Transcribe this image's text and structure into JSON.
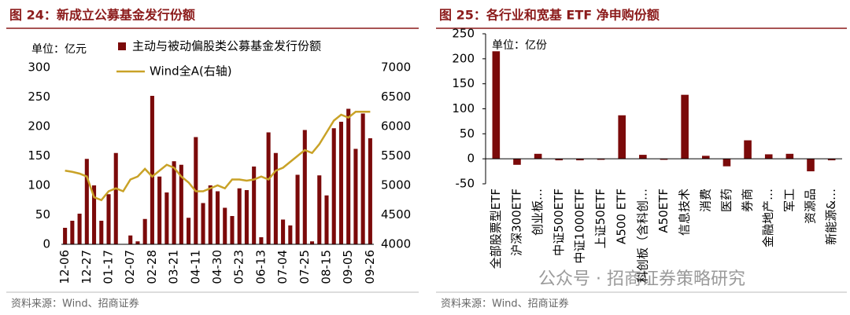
{
  "chart_data": [
    {
      "type": "bar",
      "title": "图 24：新成立公募基金发行份额",
      "unit": "单位：亿元",
      "source": "资料来源：Wind、招商证券",
      "categories": [
        "12-06",
        null,
        null,
        "12-27",
        null,
        null,
        "01-17",
        null,
        null,
        "02-07",
        null,
        null,
        "02-28",
        null,
        null,
        "03-21",
        null,
        null,
        "04-11",
        null,
        null,
        "04-30",
        null,
        null,
        "05-23",
        null,
        null,
        "06-13",
        null,
        null,
        "07-04",
        null,
        null,
        "07-25",
        null,
        null,
        "08-15",
        null,
        null,
        "09-05",
        null,
        null,
        "09-26"
      ],
      "series": [
        {
          "name": "主动与被动偏股类公募基金发行份额",
          "type": "bar",
          "color": "#7b0a0a",
          "values": [
            28,
            40,
            52,
            145,
            100,
            40,
            85,
            155,
            0,
            15,
            5,
            43,
            252,
            115,
            88,
            141,
            135,
            45,
            182,
            70,
            100,
            90,
            62,
            48,
            95,
            92,
            132,
            12,
            190,
            155,
            42,
            32,
            118,
            194,
            5,
            117,
            83,
            197,
            208,
            230,
            162,
            222,
            180
          ]
        },
        {
          "name": "Wind全A(右轴)",
          "type": "line",
          "axis": "y2",
          "color": "#c9a227",
          "values": [
            5250,
            5230,
            5200,
            5150,
            4800,
            4750,
            4900,
            4950,
            4900,
            5100,
            5150,
            5280,
            5150,
            5250,
            5350,
            5300,
            5150,
            5050,
            4900,
            4900,
            4950,
            5000,
            4950,
            5100,
            5100,
            5080,
            5100,
            5150,
            5100,
            5250,
            5300,
            5400,
            5500,
            5600,
            5550,
            5700,
            5900,
            6100,
            6200,
            6150,
            6250,
            6250,
            6250
          ]
        }
      ],
      "ylim": [
        0,
        300
      ],
      "yticks": [
        0,
        50,
        100,
        150,
        200,
        250,
        300
      ],
      "y2lim": [
        4000,
        7000
      ],
      "y2ticks": [
        4000,
        4500,
        5000,
        5500,
        6000,
        6500,
        7000
      ]
    },
    {
      "type": "bar",
      "title": "图 25：各行业和宽基 ETF 净申购份额",
      "unit": "单位：亿份",
      "source": "资料来源：Wind、招商证券",
      "watermark": "公众号 · 招商证券策略研究",
      "categories": [
        "全部股票型ETF",
        "沪深300ETF",
        "创业板…",
        "中证500ETF",
        "中证1000ETF",
        "上证50ETF",
        "A500 ETF",
        "科创板（含科创…",
        "A50ETF",
        "信息技术",
        "消费",
        "医药",
        "券商",
        "金融地产…",
        "军工",
        "资源品",
        "新能源&…"
      ],
      "series": [
        {
          "name": null,
          "type": "bar",
          "color": "#7b0a0a",
          "values": [
            215,
            -12,
            10,
            -3,
            -3,
            -2,
            87,
            8,
            -2,
            128,
            6,
            -15,
            37,
            9,
            10,
            -25,
            -3
          ]
        }
      ],
      "ylim": [
        -50,
        250
      ],
      "yticks": [
        -50,
        0,
        50,
        100,
        150,
        200,
        250
      ]
    }
  ]
}
